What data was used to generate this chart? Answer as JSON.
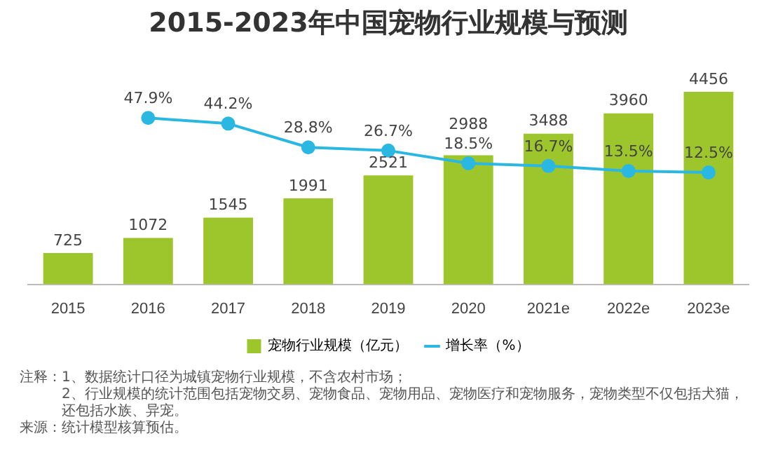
{
  "chart_data": {
    "type": "bar",
    "title": "2015-2023年中国宠物行业规模与预测",
    "categories": [
      "2015",
      "2016",
      "2017",
      "2018",
      "2019",
      "2020",
      "2021e",
      "2022e",
      "2023e"
    ],
    "series": [
      {
        "name": "宠物行业规模（亿元）",
        "color": "#9dc62d",
        "values": [
          725,
          1072,
          1545,
          1991,
          2521,
          2988,
          3488,
          3960,
          4456
        ]
      },
      {
        "name": "增长率（%）",
        "type": "line",
        "axis": "y2",
        "color": "#2ab8e3",
        "values": [
          null,
          47.9,
          44.2,
          28.8,
          26.7,
          18.5,
          16.7,
          13.5,
          12.5
        ],
        "value_labels": [
          null,
          "47.9%",
          "44.2%",
          "28.8%",
          "26.7%",
          "18.5%",
          "16.7%",
          "13.5%",
          "12.5%"
        ]
      }
    ],
    "data_labels": true,
    "tick_labels": "x",
    "grid": false,
    "legend": "bottom",
    "marker": "circle",
    "annotations": [
      "注释：1、数据统计口径为城镇宠物行业规模，不含农村市场；",
      "2、行业规模的统计范围包括宠物交易、宠物食品、宠物用品、宠物医疗和宠物服务，宠物类型不仅包括犬猫，还包括水族、异宠。",
      "来源：统计模型核算预估。"
    ]
  }
}
